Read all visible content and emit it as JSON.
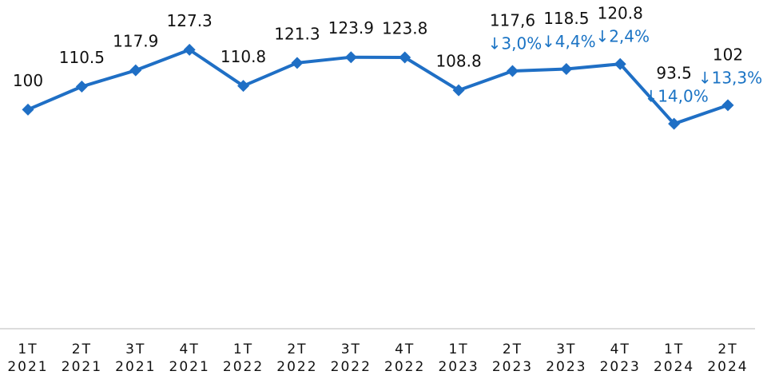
{
  "chart_data": {
    "type": "line",
    "categories": [
      [
        "1T",
        "2021"
      ],
      [
        "2T",
        "2021"
      ],
      [
        "3T",
        "2021"
      ],
      [
        "4T",
        "2021"
      ],
      [
        "1T",
        "2022"
      ],
      [
        "2T",
        "2022"
      ],
      [
        "3T",
        "2022"
      ],
      [
        "4T",
        "2022"
      ],
      [
        "1T",
        "2023"
      ],
      [
        "2T",
        "2023"
      ],
      [
        "3T",
        "2023"
      ],
      [
        "4T",
        "2023"
      ],
      [
        "1T",
        "2024"
      ],
      [
        "2T",
        "2024"
      ]
    ],
    "series": [
      {
        "color": "#1f6fc5",
        "values": [
          100,
          110.5,
          117.9,
          127.3,
          110.8,
          121.3,
          123.9,
          123.8,
          108.8,
          117.6,
          118.5,
          120.8,
          93.5,
          102
        ],
        "value_labels": [
          "100",
          "110.5",
          "117.9",
          "127.3",
          "110.8",
          "121.3",
          "123.9",
          "123.8",
          "108.8",
          "117,6",
          "118.5",
          "120.8",
          "93.5",
          "102"
        ],
        "change_labels": [
          null,
          null,
          null,
          null,
          null,
          null,
          null,
          null,
          null,
          "↓3,0%",
          "↓4,4%",
          "↓2,4%",
          "↓14,0%",
          "↓13,3%"
        ],
        "change_color": "#1a73c4"
      }
    ],
    "ylim": [
      0,
      150
    ]
  }
}
